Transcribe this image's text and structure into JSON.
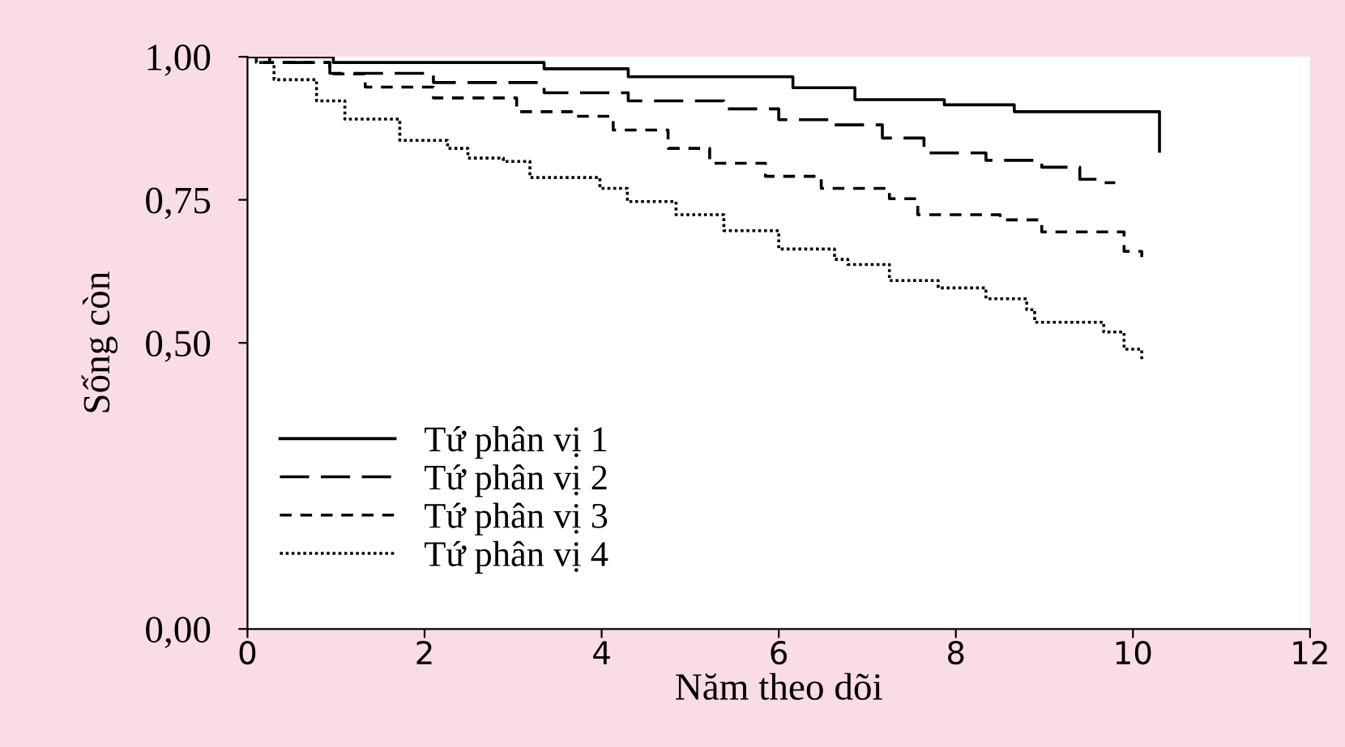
{
  "chart_data": {
    "type": "step",
    "xlabel": "Năm theo dõi",
    "ylabel": "Sống còn",
    "xlim": [
      0,
      12
    ],
    "xticks": [
      0,
      2,
      4,
      6,
      8,
      10,
      12
    ],
    "ylim": [
      0,
      1.0
    ],
    "yticks": [
      {
        "value": 0,
        "label": "0,00"
      },
      {
        "value": 0.5,
        "label": "0,50"
      },
      {
        "value": 0.75,
        "label": "0,75"
      },
      {
        "value": 1.0,
        "label": "1,00"
      }
    ],
    "grid": false,
    "legend": "bottom left",
    "series": [
      {
        "name": "Tứ phân vị 1",
        "color": "#000000",
        "line_style": "solid",
        "x": [
          0,
          0.97,
          3.35,
          4.3,
          6.16,
          6.86,
          7.87,
          8.66,
          10.3,
          10.3
        ],
        "values": [
          1.0,
          0.99,
          0.979,
          0.965,
          0.946,
          0.925,
          0.916,
          0.904,
          0.904,
          0.835
        ]
      },
      {
        "name": "Tứ phân vị 2",
        "color": "#000000",
        "line_style": "dashed",
        "x": [
          0,
          0.25,
          0.93,
          2.1,
          3.35,
          4.3,
          5.38,
          6.0,
          6.63,
          7.17,
          7.64,
          8.34,
          8.97,
          9.4,
          9.63,
          9.8
        ],
        "values": [
          1.0,
          0.99,
          0.971,
          0.955,
          0.937,
          0.923,
          0.909,
          0.89,
          0.881,
          0.858,
          0.832,
          0.819,
          0.807,
          0.786,
          0.78,
          0.78
        ]
      },
      {
        "name": "Tứ phân vị 3",
        "color": "#000000",
        "line_style": "dashed",
        "x": [
          0,
          0.1,
          0.93,
          1.33,
          2.1,
          3.04,
          3.66,
          4.13,
          4.75,
          5.22,
          5.85,
          6.48,
          7.25,
          7.57,
          8.5,
          8.97,
          9.67,
          9.9,
          10.1
        ],
        "values": [
          1.0,
          0.99,
          0.97,
          0.947,
          0.928,
          0.904,
          0.896,
          0.872,
          0.84,
          0.814,
          0.791,
          0.77,
          0.752,
          0.724,
          0.715,
          0.694,
          0.694,
          0.66,
          0.65
        ]
      },
      {
        "name": "Tứ phân vị 4",
        "color": "#000000",
        "line_style": "dotted",
        "x": [
          0,
          0.1,
          0.3,
          0.78,
          1.1,
          1.72,
          2.26,
          2.49,
          2.89,
          3.19,
          3.98,
          4.29,
          4.84,
          5.38,
          6.0,
          6.63,
          6.78,
          7.25,
          7.8,
          8.34,
          8.8,
          8.89,
          9.67,
          9.9,
          10.1
        ],
        "values": [
          1.0,
          0.99,
          0.96,
          0.923,
          0.891,
          0.854,
          0.84,
          0.823,
          0.817,
          0.789,
          0.77,
          0.747,
          0.724,
          0.696,
          0.664,
          0.646,
          0.637,
          0.609,
          0.596,
          0.577,
          0.558,
          0.536,
          0.519,
          0.489,
          0.47
        ]
      }
    ]
  }
}
